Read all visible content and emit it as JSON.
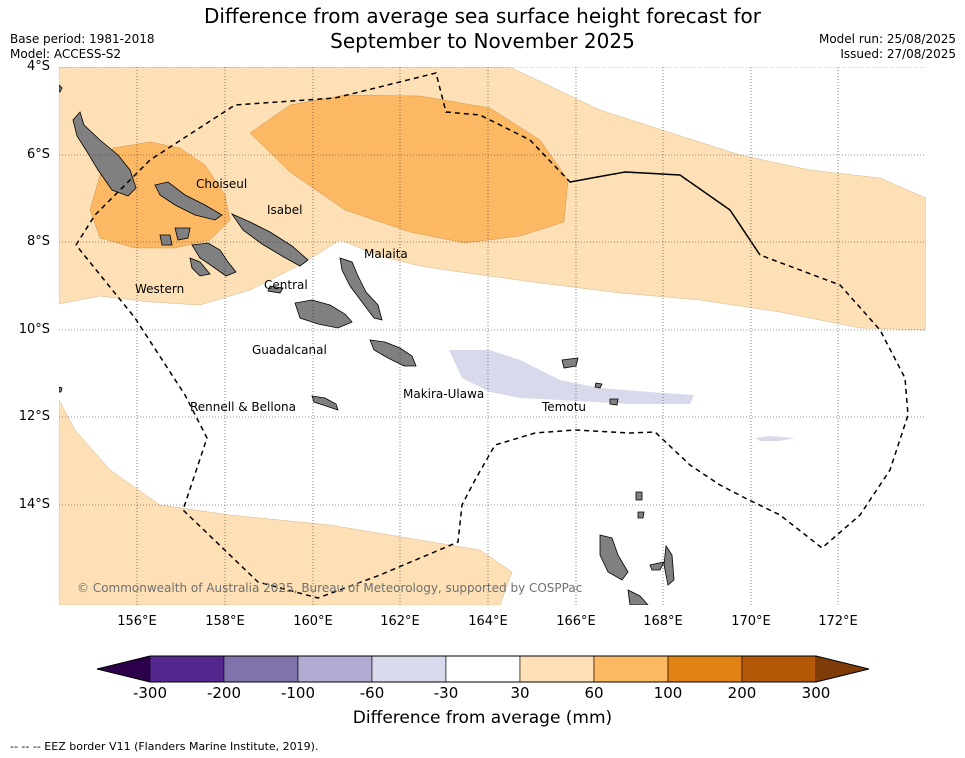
{
  "title_lines": [
    "Difference from average sea surface height forecast for",
    "September to November 2025"
  ],
  "meta": {
    "base_period": "Base period: 1981-2018",
    "model": "Model: ACCESS-S2",
    "model_run": "Model run: 25/08/2025",
    "issued": "Issued: 27/08/2025"
  },
  "lat_labels": [
    "4°S",
    "6°S",
    "8°S",
    "10°S",
    "12°S",
    "14°S"
  ],
  "lon_labels": [
    "156°E",
    "158°E",
    "160°E",
    "162°E",
    "164°E",
    "166°E",
    "168°E",
    "170°E",
    "172°E"
  ],
  "places": [
    "Choiseul",
    "Isabel",
    "Malaita",
    "Western",
    "Central",
    "Guadalcanal",
    "Makira-Ulawa",
    "Rennell & Bellona",
    "Temotu"
  ],
  "copyright": "© Commonwealth of Australia 2025, Bureau of Meteorology, supported by COSPPac",
  "colorbar": {
    "label": "Difference from average (mm)",
    "ticks": [
      "-300",
      "-200",
      "-100",
      "-60",
      "-30",
      "30",
      "60",
      "100",
      "200",
      "300"
    ],
    "colors": [
      "#54278f",
      "#8073ac",
      "#b2abd2",
      "#d8daeb",
      "#ffffff",
      "#fee0b6",
      "#fdb863",
      "#e08214",
      "#b35806"
    ],
    "under_color": "#2d004b",
    "over_color": "#7f3b08"
  },
  "map_colors": {
    "land": "#808080",
    "light_orange": "#fee0b6",
    "orange": "#fdb863",
    "light_purple": "#d8daeb"
  },
  "footer": "--  --  -- EEZ border V11 (Flanders Marine Institute, 2019)."
}
